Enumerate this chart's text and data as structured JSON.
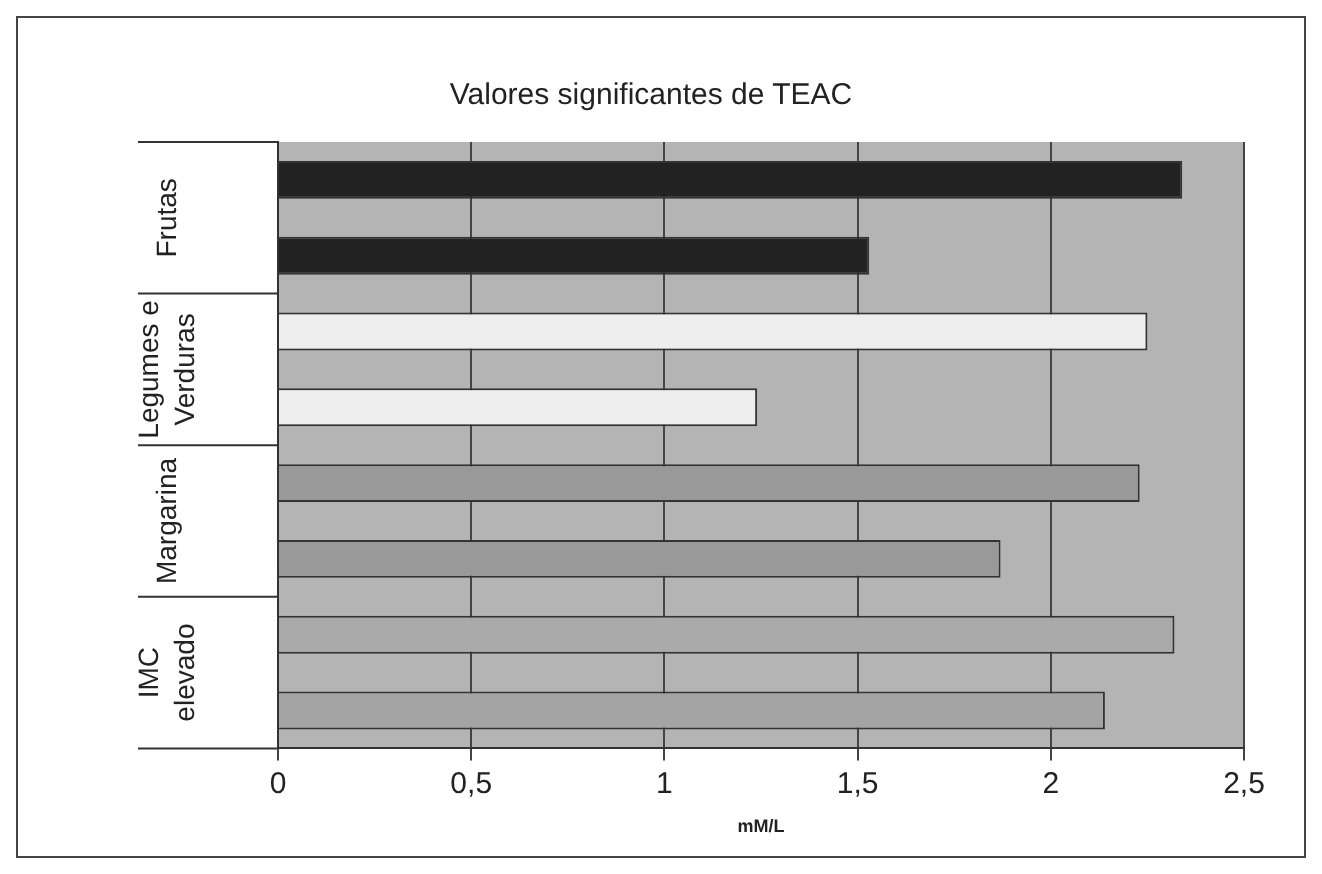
{
  "chart_data": {
    "type": "bar",
    "orientation": "horizontal",
    "title": "Valores significantes de TEAC",
    "xlabel": "mM/L",
    "categories": [
      "Frutas",
      "Legumes e Verduras",
      "Margarina",
      "IMC elevado"
    ],
    "series": [
      {
        "colors": [
          "#222222",
          "#eeeeee",
          "#999999",
          "#aaaaaa"
        ],
        "values": [
          2.34,
          2.25,
          2.23,
          2.32
        ]
      },
      {
        "colors": [
          "#222222",
          "#eeeeee",
          "#999999",
          "#a4a4a4"
        ],
        "values": [
          1.53,
          1.24,
          1.87,
          2.14
        ]
      }
    ],
    "xlim": [
      0,
      2.5
    ],
    "xticks": [
      0,
      {
        "value": 0.5,
        "label": "0,5"
      },
      1,
      {
        "value": 1.5,
        "label": "1,5"
      },
      2,
      {
        "value": 2.5,
        "label": "2,5"
      }
    ],
    "grid": "x",
    "legend": false
  }
}
